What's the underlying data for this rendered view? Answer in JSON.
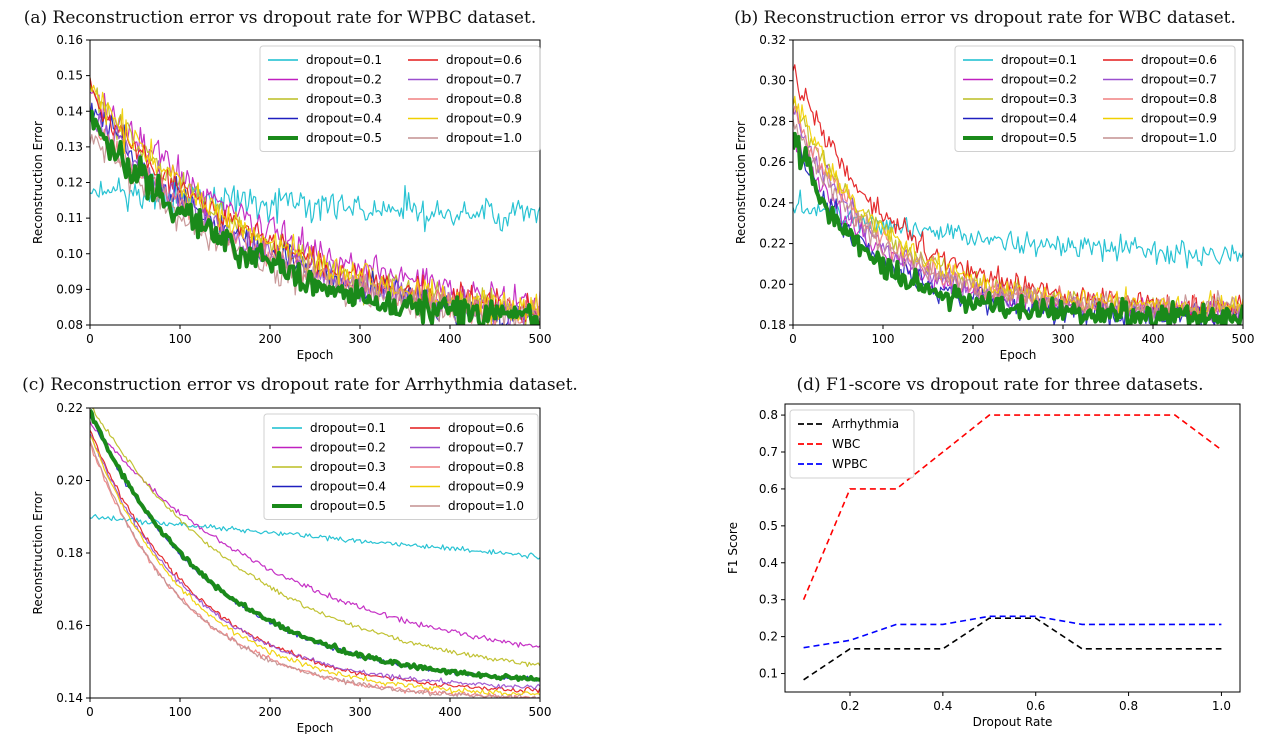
{
  "captions": {
    "a": "(a) Reconstruction error vs dropout rate for WPBC dataset.",
    "b": "(b) Reconstruction error vs dropout rate for WBC dataset.",
    "c": "(c) Reconstruction error vs dropout rate for Arrhythmia dataset.",
    "d": "(d) F1-score vs dropout rate for three datasets."
  },
  "chart_data": [
    {
      "panel": "a",
      "type": "line",
      "xlabel": "Epoch",
      "ylabel": "Reconstruction Error",
      "xlim": [
        0,
        500
      ],
      "ylim": [
        0.08,
        0.16
      ],
      "xticks": [
        0,
        100,
        200,
        300,
        400,
        500
      ],
      "yticks": [
        0.08,
        0.09,
        0.1,
        0.11,
        0.12,
        0.13,
        0.14,
        0.15,
        0.16
      ],
      "ytick_decimals": 2,
      "grid": false,
      "legend": "top-right, 2 columns",
      "noise": 0.0045,
      "series": [
        {
          "name": "dropout=0.1",
          "color": "#17becf",
          "width": 1.2,
          "start": 0.118,
          "end": 0.111,
          "tau": 400
        },
        {
          "name": "dropout=0.2",
          "color": "#c020c0",
          "width": 1.2,
          "start": 0.146,
          "end": 0.086,
          "tau": 230
        },
        {
          "name": "dropout=0.3",
          "color": "#bcbd22",
          "width": 1.2,
          "start": 0.146,
          "end": 0.083,
          "tau": 200
        },
        {
          "name": "dropout=0.4",
          "color": "#1f1fbf",
          "width": 1.2,
          "start": 0.142,
          "end": 0.082,
          "tau": 190
        },
        {
          "name": "dropout=0.5",
          "color": "#1a8a1a",
          "width": 4,
          "start": 0.139,
          "end": 0.081,
          "tau": 170
        },
        {
          "name": "dropout=0.6",
          "color": "#e31a1c",
          "width": 1.2,
          "start": 0.145,
          "end": 0.084,
          "tau": 200
        },
        {
          "name": "dropout=0.7",
          "color": "#9a4fcf",
          "width": 1.2,
          "start": 0.14,
          "end": 0.083,
          "tau": 190
        },
        {
          "name": "dropout=0.8",
          "color": "#f08080",
          "width": 1.2,
          "start": 0.138,
          "end": 0.083,
          "tau": 190
        },
        {
          "name": "dropout=0.9",
          "color": "#f0d000",
          "width": 1.2,
          "start": 0.146,
          "end": 0.084,
          "tau": 200
        },
        {
          "name": "dropout=1.0",
          "color": "#c49090",
          "width": 1.2,
          "start": 0.133,
          "end": 0.082,
          "tau": 180
        }
      ]
    },
    {
      "panel": "b",
      "type": "line",
      "xlabel": "Epoch",
      "ylabel": "Reconstruction Error",
      "xlim": [
        0,
        500
      ],
      "ylim": [
        0.18,
        0.32
      ],
      "xticks": [
        0,
        100,
        200,
        300,
        400,
        500
      ],
      "yticks": [
        0.18,
        0.2,
        0.22,
        0.24,
        0.26,
        0.28,
        0.3,
        0.32
      ],
      "ytick_decimals": 2,
      "grid": false,
      "legend": "top-right, 2 columns",
      "noise": 0.006,
      "series": [
        {
          "name": "dropout=0.1",
          "color": "#17becf",
          "width": 1.2,
          "start": 0.24,
          "end": 0.213,
          "tau": 300
        },
        {
          "name": "dropout=0.2",
          "color": "#c020c0",
          "width": 1.2,
          "start": 0.275,
          "end": 0.187,
          "tau": 90
        },
        {
          "name": "dropout=0.3",
          "color": "#bcbd22",
          "width": 1.2,
          "start": 0.29,
          "end": 0.188,
          "tau": 100
        },
        {
          "name": "dropout=0.4",
          "color": "#1f1fbf",
          "width": 1.2,
          "start": 0.272,
          "end": 0.185,
          "tau": 85
        },
        {
          "name": "dropout=0.5",
          "color": "#1a8a1a",
          "width": 4,
          "start": 0.272,
          "end": 0.184,
          "tau": 80
        },
        {
          "name": "dropout=0.6",
          "color": "#e31a1c",
          "width": 1.2,
          "start": 0.305,
          "end": 0.188,
          "tau": 110
        },
        {
          "name": "dropout=0.7",
          "color": "#9a4fcf",
          "width": 1.2,
          "start": 0.285,
          "end": 0.186,
          "tau": 95
        },
        {
          "name": "dropout=0.8",
          "color": "#f08080",
          "width": 1.2,
          "start": 0.288,
          "end": 0.187,
          "tau": 95
        },
        {
          "name": "dropout=0.9",
          "color": "#f0d000",
          "width": 1.2,
          "start": 0.292,
          "end": 0.189,
          "tau": 100
        },
        {
          "name": "dropout=1.0",
          "color": "#c49090",
          "width": 1.2,
          "start": 0.28,
          "end": 0.188,
          "tau": 95
        }
      ]
    },
    {
      "panel": "c",
      "type": "line",
      "xlabel": "Epoch",
      "ylabel": "Reconstruction Error",
      "xlim": [
        0,
        500
      ],
      "ylim": [
        0.14,
        0.22
      ],
      "xticks": [
        0,
        100,
        200,
        300,
        400,
        500
      ],
      "yticks": [
        0.14,
        0.16,
        0.18,
        0.2,
        0.22
      ],
      "ytick_decimals": 2,
      "grid": false,
      "legend": "top-right, 2 columns",
      "noise": 0.0007,
      "series": [
        {
          "name": "dropout=0.1",
          "color": "#17becf",
          "width": 1.2,
          "start": 0.19,
          "end": 0.179,
          "tau": 800,
          "linear": true
        },
        {
          "name": "dropout=0.2",
          "color": "#c020c0",
          "width": 1.2,
          "start": 0.216,
          "end": 0.154,
          "tau": 230
        },
        {
          "name": "dropout=0.3",
          "color": "#bcbd22",
          "width": 1.2,
          "start": 0.221,
          "end": 0.149,
          "tau": 190
        },
        {
          "name": "dropout=0.4",
          "color": "#1f1fbf",
          "width": 1.2,
          "start": 0.218,
          "end": 0.145,
          "tau": 140
        },
        {
          "name": "dropout=0.5",
          "color": "#1a8a1a",
          "width": 4,
          "start": 0.219,
          "end": 0.145,
          "tau": 140
        },
        {
          "name": "dropout=0.6",
          "color": "#e31a1c",
          "width": 1.2,
          "start": 0.214,
          "end": 0.142,
          "tau": 120
        },
        {
          "name": "dropout=0.7",
          "color": "#9a4fcf",
          "width": 1.2,
          "start": 0.213,
          "end": 0.143,
          "tau": 115
        },
        {
          "name": "dropout=0.8",
          "color": "#f08080",
          "width": 1.2,
          "start": 0.21,
          "end": 0.14,
          "tau": 110
        },
        {
          "name": "dropout=0.9",
          "color": "#f0d000",
          "width": 1.2,
          "start": 0.213,
          "end": 0.141,
          "tau": 115
        },
        {
          "name": "dropout=1.0",
          "color": "#c49090",
          "width": 1.2,
          "start": 0.211,
          "end": 0.14,
          "tau": 108
        }
      ]
    },
    {
      "panel": "d",
      "type": "line",
      "xlabel": "Dropout Rate",
      "ylabel": "F1 Score",
      "xlim": [
        0.06,
        1.04
      ],
      "ylim": [
        0.05,
        0.83
      ],
      "xticks": [
        0.2,
        0.4,
        0.6,
        0.8,
        1.0
      ],
      "xtick_decimals": 1,
      "yticks": [
        0.1,
        0.2,
        0.3,
        0.4,
        0.5,
        0.6,
        0.7,
        0.8
      ],
      "ytick_decimals": 1,
      "grid": false,
      "legend": "top-left",
      "x": [
        0.1,
        0.2,
        0.3,
        0.4,
        0.5,
        0.6,
        0.7,
        0.8,
        0.9,
        1.0
      ],
      "series": [
        {
          "name": "Arrhythmia",
          "color": "#000000",
          "dashed": true,
          "values": [
            0.083,
            0.167,
            0.167,
            0.167,
            0.25,
            0.25,
            0.167,
            0.167,
            0.167,
            0.167
          ]
        },
        {
          "name": "WBC",
          "color": "#ff0000",
          "dashed": true,
          "values": [
            0.3,
            0.6,
            0.6,
            0.7,
            0.8,
            0.8,
            0.8,
            0.8,
            0.8,
            0.706
          ]
        },
        {
          "name": "WPBC",
          "color": "#0000ff",
          "dashed": true,
          "values": [
            0.17,
            0.19,
            0.233,
            0.233,
            0.255,
            0.255,
            0.233,
            0.233,
            0.233,
            0.233
          ]
        }
      ]
    }
  ]
}
